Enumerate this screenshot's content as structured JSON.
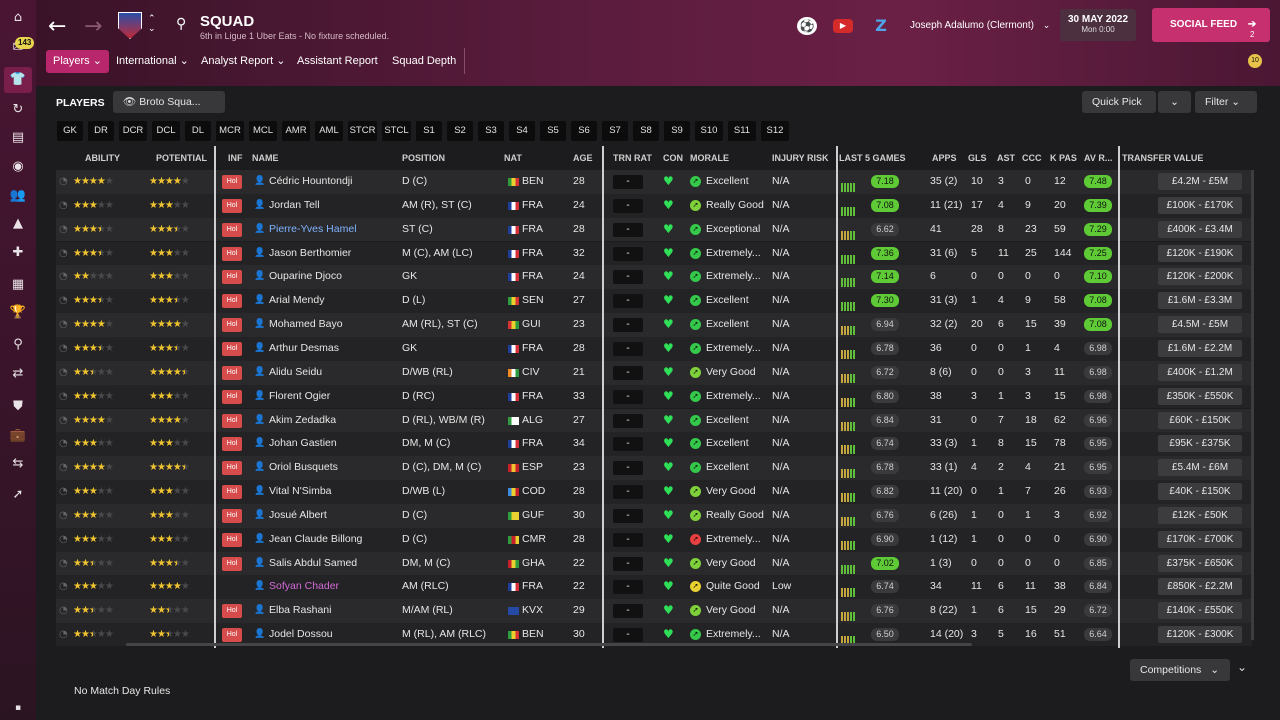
{
  "sidebar": {
    "badge": "143"
  },
  "header": {
    "title": "SQUAD",
    "subtitle": "6th in Ligue 1 Uber Eats - No fixture scheduled.",
    "manager": "Joseph Adalumo (Clermont)",
    "date": "30 MAY 2022",
    "time": "Mon 0:00",
    "social": "SOCIAL FEED",
    "social_count": "2",
    "notif_count": "10"
  },
  "tabs": [
    "Players",
    "International",
    "Analyst Report",
    "Assistant Report",
    "Squad Depth"
  ],
  "toolbar": {
    "section": "PLAYERS",
    "view": "Broto Squa...",
    "quick_pick": "Quick Pick",
    "filter": "Filter"
  },
  "positions": [
    "GK",
    "DR",
    "DCR",
    "DCL",
    "DL",
    "MCR",
    "MCL",
    "AMR",
    "AML",
    "STCR",
    "STCL",
    "S1",
    "S2",
    "S3",
    "S4",
    "S5",
    "S6",
    "S7",
    "S8",
    "S9",
    "S10",
    "S11",
    "S12"
  ],
  "columns": {
    "ability": "ABILITY",
    "potential": "POTENTIAL",
    "inf": "INF",
    "name": "NAME",
    "position": "POSITION",
    "nat": "NAT",
    "age": "AGE",
    "trn": "TRN RAT",
    "con": "CON",
    "morale": "MORALE",
    "injury": "INJURY RISK",
    "last5": "LAST 5 GAMES",
    "apps": "APPS",
    "gls": "GLS",
    "ast": "AST",
    "ccc": "CCC",
    "kpas": "K PAS",
    "avr": "AV R...",
    "tv": "TRANSFER VALUE"
  },
  "players": [
    {
      "ab": 4,
      "pot": 4,
      "inf": "Hol",
      "name": "Cédric Hountondji",
      "pos": "D (C)",
      "nat": "BEN",
      "age": "28",
      "trn": "-",
      "morale": "Excellent",
      "mc": "#35c84a",
      "injury": "N/A",
      "last5": "7.18",
      "l5hi": true,
      "apps": "35 (2)",
      "gls": "10",
      "ast": "3",
      "ccc": "0",
      "kpas": "12",
      "avr": "7.48",
      "avhi": true,
      "tv": "£4.2M - £5M"
    },
    {
      "ab": 3,
      "pot": 3,
      "inf": "Hol",
      "name": "Jordan Tell",
      "pos": "AM (R), ST (C)",
      "nat": "FRA",
      "age": "24",
      "trn": "-",
      "morale": "Really Good",
      "mc": "#7fd13b",
      "injury": "N/A",
      "last5": "7.08",
      "l5hi": true,
      "apps": "11 (21)",
      "gls": "17",
      "ast": "4",
      "ccc": "9",
      "kpas": "20",
      "avr": "7.39",
      "avhi": true,
      "tv": "£100K - £170K"
    },
    {
      "ab": 3.5,
      "pot": 3.5,
      "inf": "Hol",
      "name": "Pierre-Yves Hamel",
      "nc": "#7fb3ff",
      "pos": "ST (C)",
      "nat": "FRA",
      "age": "28",
      "trn": "-",
      "morale": "Exceptional",
      "mc": "#35c84a",
      "injury": "N/A",
      "last5": "6.62",
      "apps": "41",
      "gls": "28",
      "ast": "8",
      "ccc": "23",
      "kpas": "59",
      "avr": "7.29",
      "avhi": true,
      "tv": "£400K - £3.4M"
    },
    {
      "ab": 3.5,
      "pot": 3,
      "inf": "Hol",
      "name": "Jason Berthomier",
      "pos": "M (C), AM (LC)",
      "nat": "FRA",
      "age": "32",
      "trn": "-",
      "morale": "Extremely...",
      "mc": "#35c84a",
      "injury": "N/A",
      "last5": "7.36",
      "l5hi": true,
      "apps": "31 (6)",
      "gls": "5",
      "ast": "11",
      "ccc": "25",
      "kpas": "144",
      "avr": "7.25",
      "avhi": true,
      "tv": "£120K - £190K"
    },
    {
      "ab": 2,
      "pot": 3,
      "inf": "Hol",
      "name": "Ouparine Djoco",
      "pos": "GK",
      "nat": "FRA",
      "age": "24",
      "trn": "-",
      "morale": "Extremely...",
      "mc": "#35c84a",
      "injury": "N/A",
      "last5": "7.14",
      "l5hi": true,
      "apps": "6",
      "gls": "0",
      "ast": "0",
      "ccc": "0",
      "kpas": "0",
      "avr": "7.10",
      "avhi": true,
      "tv": "£120K - £200K"
    },
    {
      "ab": 3.5,
      "pot": 3.5,
      "inf": "Hol",
      "name": "Arial Mendy",
      "pos": "D (L)",
      "nat": "SEN",
      "age": "27",
      "trn": "-",
      "morale": "Excellent",
      "mc": "#35c84a",
      "injury": "N/A",
      "last5": "7.30",
      "l5hi": true,
      "apps": "31 (3)",
      "gls": "1",
      "ast": "4",
      "ccc": "9",
      "kpas": "58",
      "avr": "7.08",
      "avhi": true,
      "tv": "£1.6M - £3.3M"
    },
    {
      "ab": 4,
      "pot": 4,
      "inf": "Hol",
      "name": "Mohamed Bayo",
      "pos": "AM (RL), ST (C)",
      "nat": "GUI",
      "age": "23",
      "trn": "-",
      "morale": "Excellent",
      "mc": "#35c84a",
      "injury": "N/A",
      "last5": "6.94",
      "apps": "32 (2)",
      "gls": "20",
      "ast": "6",
      "ccc": "15",
      "kpas": "39",
      "avr": "7.08",
      "avhi": true,
      "tv": "£4.5M - £5M"
    },
    {
      "ab": 3.5,
      "pot": 3.5,
      "inf": "Hol",
      "name": "Arthur Desmas",
      "pos": "GK",
      "nat": "FRA",
      "age": "28",
      "trn": "-",
      "morale": "Extremely...",
      "mc": "#35c84a",
      "injury": "N/A",
      "last5": "6.78",
      "apps": "36",
      "gls": "0",
      "ast": "0",
      "ccc": "1",
      "kpas": "4",
      "avr": "6.98",
      "tv": "£1.6M - £2.2M"
    },
    {
      "ab": 2.5,
      "pot": 4.5,
      "inf": "Hol",
      "name": "Alidu Seidu",
      "pos": "D/WB (RL)",
      "nat": "CIV",
      "age": "21",
      "trn": "-",
      "morale": "Very Good",
      "mc": "#7fd13b",
      "injury": "N/A",
      "last5": "6.72",
      "apps": "8 (6)",
      "gls": "0",
      "ast": "0",
      "ccc": "3",
      "kpas": "11",
      "avr": "6.98",
      "tv": "£400K - £1.2M"
    },
    {
      "ab": 3,
      "pot": 3,
      "inf": "Hol",
      "name": "Florent Ogier",
      "pos": "D (RC)",
      "nat": "FRA",
      "age": "33",
      "trn": "-",
      "morale": "Extremely...",
      "mc": "#35c84a",
      "injury": "N/A",
      "last5": "6.80",
      "apps": "38",
      "gls": "3",
      "ast": "1",
      "ccc": "3",
      "kpas": "15",
      "avr": "6.98",
      "tv": "£350K - £550K"
    },
    {
      "ab": 4,
      "pot": 4,
      "inf": "Hol",
      "name": "Akim Zedadka",
      "pos": "D (RL), WB/M (R)",
      "nat": "ALG",
      "age": "27",
      "trn": "-",
      "morale": "Excellent",
      "mc": "#35c84a",
      "injury": "N/A",
      "last5": "6.84",
      "apps": "31",
      "gls": "0",
      "ast": "7",
      "ccc": "18",
      "kpas": "62",
      "avr": "6.96",
      "tv": "£60K - £150K"
    },
    {
      "ab": 3,
      "pot": 3,
      "inf": "Hol",
      "name": "Johan Gastien",
      "pos": "DM, M (C)",
      "nat": "FRA",
      "age": "34",
      "trn": "-",
      "morale": "Excellent",
      "mc": "#35c84a",
      "injury": "N/A",
      "last5": "6.74",
      "apps": "33 (3)",
      "gls": "1",
      "ast": "8",
      "ccc": "15",
      "kpas": "78",
      "avr": "6.95",
      "tv": "£95K - £375K"
    },
    {
      "ab": 4,
      "pot": 4.5,
      "inf": "Hol",
      "name": "Oriol Busquets",
      "pos": "D (C), DM, M (C)",
      "nat": "ESP",
      "age": "23",
      "trn": "-",
      "morale": "Excellent",
      "mc": "#35c84a",
      "injury": "N/A",
      "last5": "6.78",
      "apps": "33 (1)",
      "gls": "4",
      "ast": "2",
      "ccc": "4",
      "kpas": "21",
      "avr": "6.95",
      "tv": "£5.4M - £6M"
    },
    {
      "ab": 3,
      "pot": 3,
      "inf": "Hol",
      "name": "Vital N'Simba",
      "pos": "D/WB (L)",
      "nat": "COD",
      "age": "28",
      "trn": "-",
      "morale": "Very Good",
      "mc": "#7fd13b",
      "injury": "N/A",
      "last5": "6.82",
      "apps": "11 (20)",
      "gls": "0",
      "ast": "1",
      "ccc": "7",
      "kpas": "26",
      "avr": "6.93",
      "tv": "£40K - £150K"
    },
    {
      "ab": 3,
      "pot": 3,
      "inf": "Hol",
      "name": "Josué Albert",
      "pos": "D (C)",
      "nat": "GUF",
      "age": "30",
      "trn": "-",
      "morale": "Really Good",
      "mc": "#7fd13b",
      "injury": "N/A",
      "last5": "6.76",
      "apps": "6 (26)",
      "gls": "1",
      "ast": "0",
      "ccc": "1",
      "kpas": "3",
      "avr": "6.92",
      "tv": "£12K - £50K"
    },
    {
      "ab": 3,
      "pot": 3,
      "inf": "Hol",
      "name": "Jean Claude Billong",
      "pos": "D (C)",
      "nat": "CMR",
      "age": "28",
      "trn": "-",
      "morale": "Extremely...",
      "mc": "#e84040",
      "injury": "N/A",
      "last5": "6.90",
      "apps": "1 (12)",
      "gls": "1",
      "ast": "0",
      "ccc": "0",
      "kpas": "0",
      "avr": "6.90",
      "tv": "£170K - £700K"
    },
    {
      "ab": 2.5,
      "pot": 3.5,
      "inf": "Hol",
      "name": "Salis Abdul Samed",
      "pos": "DM, M (C)",
      "nat": "GHA",
      "age": "22",
      "trn": "-",
      "morale": "Very Good",
      "mc": "#7fd13b",
      "injury": "N/A",
      "last5": "7.02",
      "l5hi": true,
      "apps": "1 (3)",
      "gls": "0",
      "ast": "0",
      "ccc": "0",
      "kpas": "0",
      "avr": "6.85",
      "tv": "£375K - £650K"
    },
    {
      "ab": 3,
      "pot": 4,
      "inf": "",
      "name": "Sofyan Chader",
      "nc": "#d36bd8",
      "pos": "AM (RLC)",
      "nat": "FRA",
      "age": "22",
      "trn": "-",
      "morale": "Quite Good",
      "mc": "#e8d030",
      "injury": "Low",
      "last5": "6.74",
      "apps": "34",
      "gls": "11",
      "ast": "6",
      "ccc": "11",
      "kpas": "38",
      "avr": "6.84",
      "tv": "£850K - £2.2M"
    },
    {
      "ab": 2.5,
      "pot": 2.5,
      "inf": "Hol",
      "name": "Elba Rashani",
      "pos": "M/AM (RL)",
      "nat": "KVX",
      "age": "29",
      "trn": "-",
      "morale": "Very Good",
      "mc": "#7fd13b",
      "injury": "N/A",
      "last5": "6.76",
      "apps": "8 (22)",
      "gls": "1",
      "ast": "6",
      "ccc": "15",
      "kpas": "29",
      "avr": "6.72",
      "tv": "£140K - £550K"
    },
    {
      "ab": 2.5,
      "pot": 2.5,
      "inf": "Hol",
      "name": "Jodel Dossou",
      "pos": "M (RL), AM (RLC)",
      "nat": "BEN",
      "age": "30",
      "trn": "-",
      "morale": "Extremely...",
      "mc": "#35c84a",
      "injury": "N/A",
      "last5": "6.50",
      "apps": "14 (20)",
      "gls": "3",
      "ast": "5",
      "ccc": "16",
      "kpas": "51",
      "avr": "6.64",
      "tv": "£120K - £300K"
    }
  ],
  "flags": {
    "BEN": [
      "#2e9b3f",
      "#e8d030",
      "#d83434"
    ],
    "FRA": [
      "#1e3f99",
      "#ffffff",
      "#d8303a"
    ],
    "SEN": [
      "#2e9b3f",
      "#e8d030",
      "#d83434"
    ],
    "GUI": [
      "#d83434",
      "#e8d030",
      "#2e9b3f"
    ],
    "CIV": [
      "#f08a24",
      "#ffffff",
      "#2e9b3f"
    ],
    "ALG": [
      "#2e9b3f",
      "#ffffff",
      "#ffffff"
    ],
    "ESP": [
      "#c8202a",
      "#f1c232",
      "#c8202a"
    ],
    "COD": [
      "#3a8ce0",
      "#e8d030",
      "#c8202a"
    ],
    "GUF": [
      "#2e9b3f",
      "#e8d030",
      "#e8d030"
    ],
    "CMR": [
      "#2e9b3f",
      "#c8202a",
      "#e8d030"
    ],
    "GHA": [
      "#c8202a",
      "#e8d030",
      "#2e9b3f"
    ],
    "KVX": [
      "#244aa5",
      "#244aa5",
      "#244aa5"
    ]
  },
  "bottom": {
    "competitions": "Competitions",
    "match_rules": "No Match Day Rules"
  }
}
